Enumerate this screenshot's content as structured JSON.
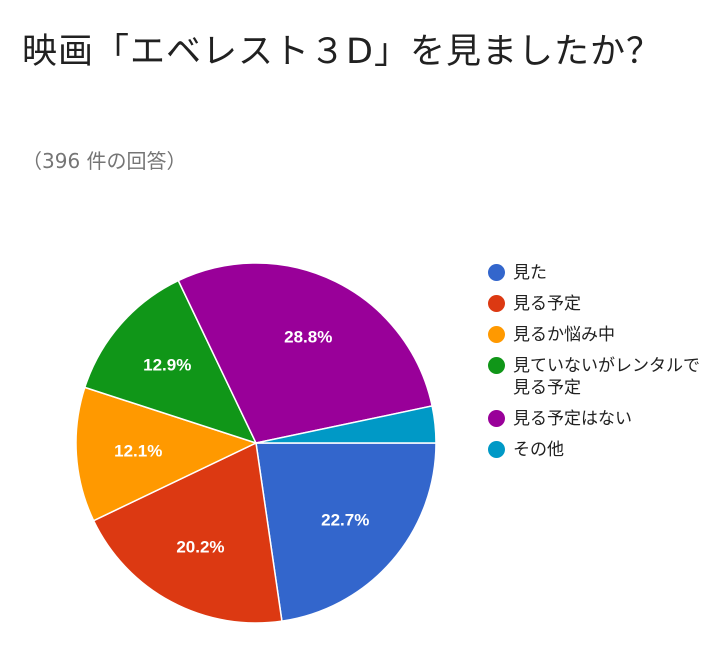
{
  "header": {
    "title": "映画「エベレスト３D」を見ましたか？",
    "subtitle": "（396 件の回答）"
  },
  "chart_data": {
    "type": "pie",
    "start_direction": "east",
    "order": "clockwise",
    "slices": [
      {
        "label": "見た",
        "value": 22.7,
        "display": "22.7%",
        "color": "#3366cc"
      },
      {
        "label": "見る予定",
        "value": 20.2,
        "display": "20.2%",
        "color": "#dc3912"
      },
      {
        "label": "見るか悩み中",
        "value": 12.1,
        "display": "12.1%",
        "color": "#ff9900"
      },
      {
        "label": "見ていないがレンタルで見る予定",
        "value": 12.9,
        "display": "12.9%",
        "color": "#109618"
      },
      {
        "label": "見る予定はない",
        "value": 28.8,
        "display": "28.8%",
        "color": "#990099"
      },
      {
        "label": "その他",
        "value": 3.3,
        "display": "",
        "color": "#0099c6"
      }
    ],
    "legend_position": "right"
  }
}
